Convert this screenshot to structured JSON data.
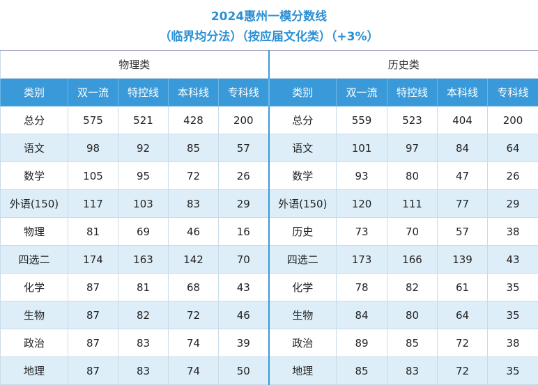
{
  "header": {
    "title": "2024惠州一模分数线",
    "subtitle": "（临界均分法）（按应届文化类）（+3%）"
  },
  "table": {
    "groups": [
      {
        "name": "物理类",
        "columns": [
          "类别",
          "双一流",
          "特控线",
          "本科线",
          "专科线"
        ],
        "rows": [
          [
            "总分",
            575,
            521,
            428,
            200
          ],
          [
            "语文",
            98,
            92,
            85,
            57
          ],
          [
            "数学",
            105,
            95,
            72,
            26
          ],
          [
            "外语(150)",
            117,
            103,
            83,
            29
          ],
          [
            "物理",
            81,
            69,
            46,
            16
          ],
          [
            "四选二",
            174,
            163,
            142,
            70
          ],
          [
            "化学",
            87,
            81,
            68,
            43
          ],
          [
            "生物",
            87,
            82,
            72,
            46
          ],
          [
            "政治",
            87,
            83,
            74,
            39
          ],
          [
            "地理",
            87,
            83,
            74,
            50
          ]
        ]
      },
      {
        "name": "历史类",
        "columns": [
          "类别",
          "双一流",
          "特控线",
          "本科线",
          "专科线"
        ],
        "rows": [
          [
            "总分",
            559,
            523,
            404,
            200
          ],
          [
            "语文",
            101,
            97,
            84,
            64
          ],
          [
            "数学",
            93,
            80,
            47,
            26
          ],
          [
            "外语(150)",
            120,
            111,
            77,
            29
          ],
          [
            "历史",
            73,
            70,
            57,
            38
          ],
          [
            "四选二",
            173,
            166,
            139,
            43
          ],
          [
            "化学",
            78,
            82,
            61,
            35
          ],
          [
            "生物",
            84,
            80,
            64,
            35
          ],
          [
            "政治",
            89,
            85,
            72,
            38
          ],
          [
            "地理",
            85,
            83,
            72,
            35
          ]
        ]
      }
    ]
  }
}
